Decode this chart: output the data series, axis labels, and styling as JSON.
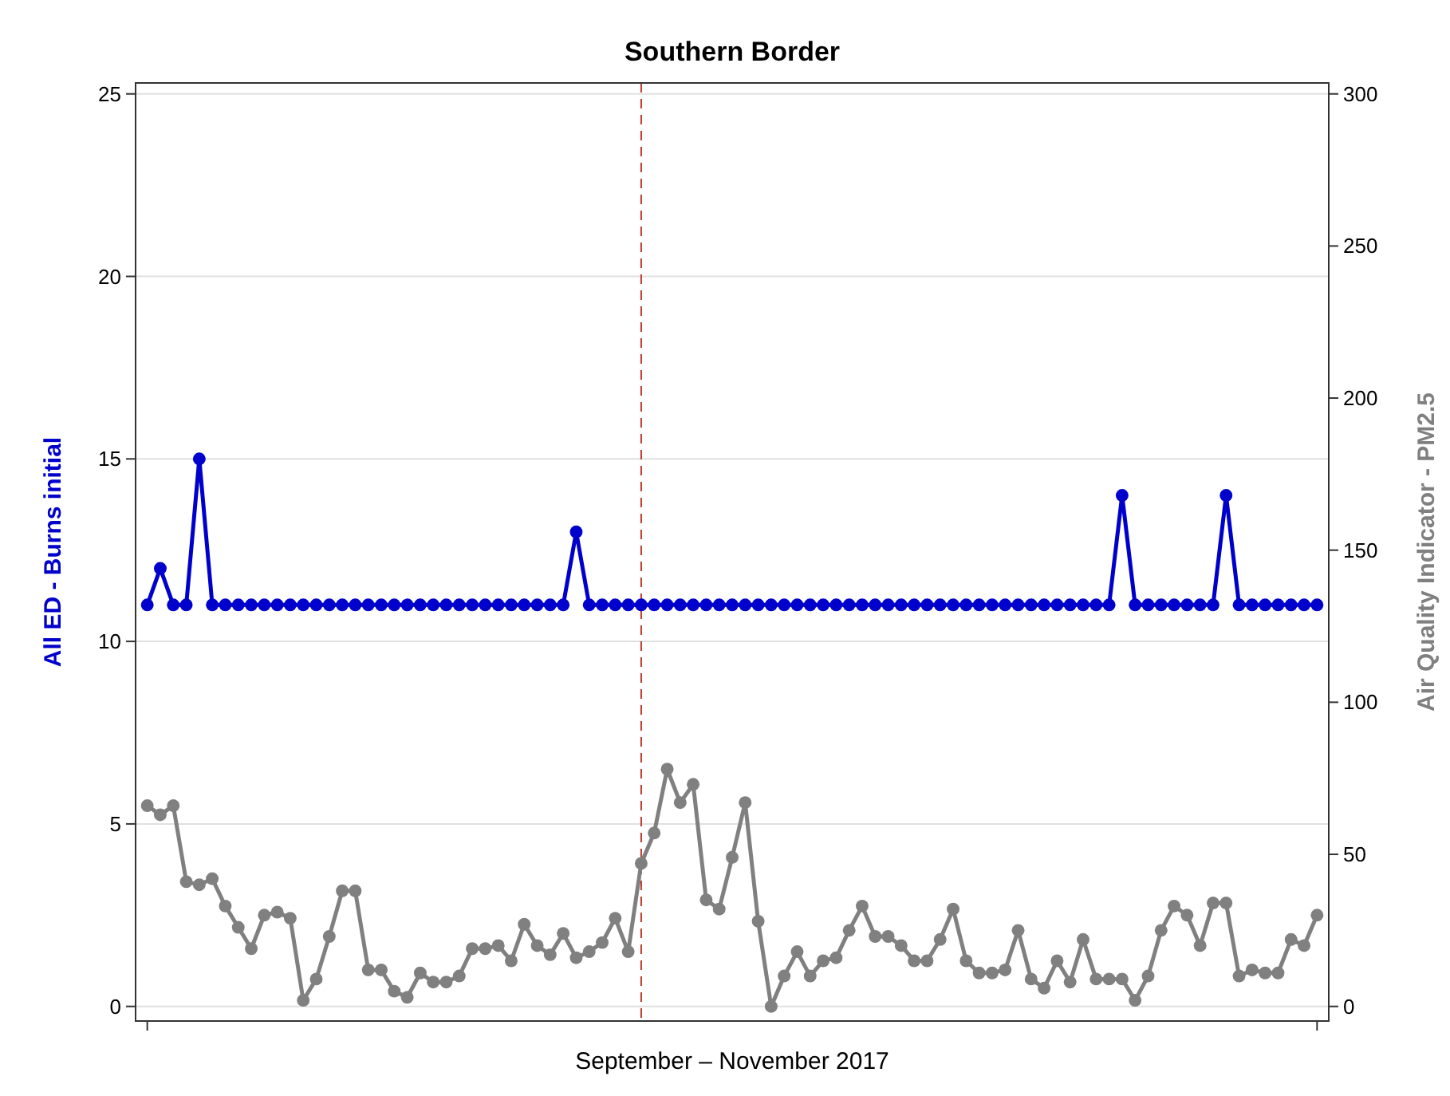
{
  "chart_data": {
    "type": "line",
    "title": "Southern Border",
    "xlabel": "September – November 2017",
    "ylabel": "All ED - Burns initial",
    "y2label": "Air Quality Indicator - PM2.5",
    "categories": [
      null,
      null,
      null,
      null,
      null,
      null,
      null,
      null,
      null,
      null,
      null,
      null,
      null,
      null,
      null,
      null,
      null,
      null,
      null,
      null,
      null,
      null,
      null,
      null,
      null,
      null,
      null,
      null,
      null,
      null,
      null,
      null,
      null,
      null,
      null,
      null,
      null,
      null,
      null,
      null,
      null,
      null,
      null,
      null,
      null,
      null,
      null,
      null,
      null,
      null,
      null,
      null,
      null,
      null,
      null,
      null,
      null,
      null,
      null,
      null,
      null,
      null,
      null,
      null,
      null,
      null,
      null,
      null,
      null,
      null,
      null,
      null,
      null,
      null,
      null,
      null,
      null,
      null,
      null,
      null,
      null,
      null,
      null,
      null,
      null,
      null,
      null,
      null,
      null,
      null,
      null
    ],
    "series": [
      {
        "color": "#0000cc",
        "values": [
          11,
          12,
          11,
          11,
          15,
          11,
          11,
          11,
          11,
          11,
          11,
          11,
          11,
          11,
          11,
          11,
          11,
          11,
          11,
          11,
          11,
          11,
          11,
          11,
          11,
          11,
          11,
          11,
          11,
          11,
          11,
          11,
          11,
          13,
          11,
          11,
          11,
          11,
          11,
          11,
          11,
          11,
          11,
          11,
          11,
          11,
          11,
          11,
          11,
          11,
          11,
          11,
          11,
          11,
          11,
          11,
          11,
          11,
          11,
          11,
          11,
          11,
          11,
          11,
          11,
          11,
          11,
          11,
          11,
          11,
          11,
          11,
          11,
          11,
          11,
          14,
          11,
          11,
          11,
          11,
          11,
          11,
          11,
          14,
          11,
          11,
          11,
          11,
          11,
          11,
          11
        ]
      },
      {
        "color": "#808080",
        "axis": "y2",
        "values": [
          66,
          63,
          66,
          41,
          40,
          42,
          33,
          26,
          19,
          30,
          31,
          29,
          2,
          9,
          23,
          38,
          38,
          12,
          12,
          5,
          3,
          11,
          8,
          8,
          10,
          19,
          19,
          20,
          15,
          27,
          20,
          17,
          24,
          16,
          18,
          21,
          29,
          18,
          47,
          57,
          78,
          67,
          73,
          35,
          32,
          49,
          67,
          28,
          0,
          10,
          18,
          10,
          15,
          16,
          25,
          33,
          23,
          23,
          20,
          15,
          15,
          22,
          32,
          15,
          11,
          11,
          12,
          25,
          9,
          6,
          15,
          8,
          22,
          9,
          9,
          9,
          2,
          10,
          25,
          33,
          30,
          20,
          34,
          34,
          10,
          12,
          11,
          11,
          22,
          20,
          30
        ]
      }
    ],
    "ylim": [
      -0.4,
      25.3
    ],
    "yticks": [
      0,
      5,
      10,
      15,
      20,
      25
    ],
    "y2lim": [
      -4.8,
      303.6
    ],
    "y2ticks": [
      0,
      50,
      100,
      150,
      200,
      250,
      300
    ],
    "grid": "y",
    "marker": "circle",
    "line_style": "solid"
  }
}
